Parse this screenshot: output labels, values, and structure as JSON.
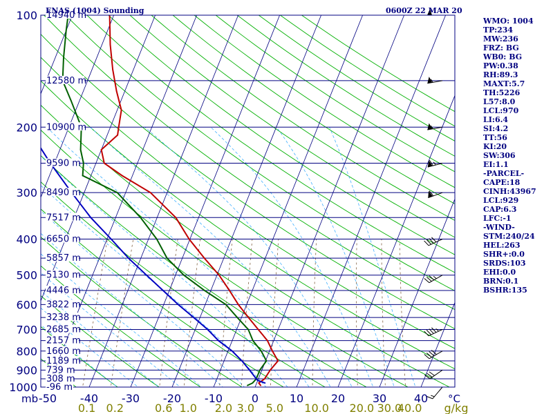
{
  "header": {
    "station": "ENAS (1004) Sounding",
    "time": "0600Z 22 MAR 20"
  },
  "indices": [
    "WMO: 1004",
    "TP:234",
    "MW:236",
    "FRZ: BG",
    "WB0: BG",
    "PW:0.38",
    "RH:89.3",
    "MAXT:5.7",
    "TH:5226",
    "L57:8.0",
    "LCL:970",
    "LI:6.4",
    "SI:4.2",
    "TT:56",
    "KI:20",
    "SW:306",
    "EI:1.1",
    "-PARCEL-",
    "CAPE:18",
    "CINH:43967",
    "LCL:929",
    "CAP:6.3",
    "LFC:-1",
    "-WIND-",
    "STM:240/24",
    "HEL:263",
    "SHR+:0.0",
    "SRDS:103",
    "EHI:0.0",
    "BRN:0.1",
    "BSHR:135"
  ],
  "colors": {
    "background": "#ffffff",
    "frame": "#000080",
    "isobar": "#000080",
    "isotherm": "#000080",
    "dry_adiabat": "#00b000",
    "moist_adiabat": "#40b0ff",
    "mixing_ratio": "#806040",
    "temperature": "#c00000",
    "dewpoint": "#006000",
    "parcel": "#0000c0",
    "mixing_label": "#808000"
  },
  "chart_data": {
    "type": "line",
    "title": "ENAS (1004) Sounding",
    "subtitle": "0600Z 22 MAR 20",
    "xlabel": "",
    "ylabel": "mb",
    "x_unit_label": "°C",
    "mixing_unit_label": "g/kg",
    "pressure_axis": {
      "scale": "log",
      "range": [
        1000,
        100
      ],
      "ticks": [
        "100",
        "200",
        "300",
        "400",
        "500",
        "600",
        "700",
        "800",
        "900",
        "1000"
      ]
    },
    "temperature_ticks": [
      "-50",
      "-40",
      "-30",
      "-20",
      "-10",
      "0",
      "10",
      "20",
      "30",
      "40"
    ],
    "mixing_ratio_ticks": [
      "0.1",
      "0.2",
      "0.6",
      "1.0",
      "2.0",
      "3.0",
      "5.0",
      "10.0",
      "20.0",
      "30.0",
      "40.0"
    ],
    "height_labels": [
      {
        "p": 100,
        "text": "14940 m"
      },
      {
        "p": 150,
        "text": "12580 m"
      },
      {
        "p": 200,
        "text": "10900 m"
      },
      {
        "p": 250,
        "text": "9590 m"
      },
      {
        "p": 300,
        "text": "8490 m"
      },
      {
        "p": 350,
        "text": "7517 m"
      },
      {
        "p": 400,
        "text": "6650 m"
      },
      {
        "p": 450,
        "text": "5857 m"
      },
      {
        "p": 500,
        "text": "5130 m"
      },
      {
        "p": 550,
        "text": "4446 m"
      },
      {
        "p": 600,
        "text": "3822 m"
      },
      {
        "p": 650,
        "text": "3238 m"
      },
      {
        "p": 700,
        "text": "2685 m"
      },
      {
        "p": 750,
        "text": "2157 m"
      },
      {
        "p": 800,
        "text": "1660 m"
      },
      {
        "p": 850,
        "text": "1189 m"
      },
      {
        "p": 900,
        "text": "739 m"
      },
      {
        "p": 950,
        "text": "308 m"
      },
      {
        "p": 1000,
        "text": "-96 m"
      }
    ],
    "series": [
      {
        "key": "temperature",
        "points": [
          [
            990,
            1.2
          ],
          [
            975,
            0.5
          ],
          [
            950,
            1.5
          ],
          [
            900,
            2.0
          ],
          [
            850,
            3.0
          ],
          [
            800,
            0.7
          ],
          [
            750,
            -1.5
          ],
          [
            700,
            -4.8
          ],
          [
            650,
            -8.3
          ],
          [
            600,
            -12.0
          ],
          [
            550,
            -15.5
          ],
          [
            500,
            -19.5
          ],
          [
            450,
            -24.7
          ],
          [
            400,
            -30.2
          ],
          [
            350,
            -35.5
          ],
          [
            300,
            -44.0
          ],
          [
            270,
            -52.5
          ],
          [
            250,
            -58.0
          ],
          [
            230,
            -60.0
          ],
          [
            210,
            -57.5
          ],
          [
            200,
            -58.0
          ],
          [
            180,
            -59.0
          ],
          [
            160,
            -62.0
          ],
          [
            140,
            -65.0
          ],
          [
            120,
            -68.0
          ],
          [
            100,
            -71.0
          ]
        ]
      },
      {
        "key": "dewpoint",
        "points": [
          [
            990,
            -2.0
          ],
          [
            975,
            -1.0
          ],
          [
            950,
            -0.5
          ],
          [
            900,
            -0.5
          ],
          [
            850,
            0.2
          ],
          [
            800,
            -2.0
          ],
          [
            750,
            -5.0
          ],
          [
            700,
            -7.2
          ],
          [
            650,
            -11.0
          ],
          [
            600,
            -15.0
          ],
          [
            550,
            -21.5
          ],
          [
            500,
            -28.0
          ],
          [
            450,
            -33.7
          ],
          [
            400,
            -38.0
          ],
          [
            350,
            -44.0
          ],
          [
            300,
            -52.0
          ],
          [
            270,
            -62.0
          ],
          [
            250,
            -63.0
          ],
          [
            230,
            -65.0
          ],
          [
            200,
            -67.0
          ],
          [
            170,
            -72.0
          ],
          [
            150,
            -76.0
          ],
          [
            130,
            -78.0
          ],
          [
            110,
            -80.0
          ],
          [
            100,
            -81.0
          ]
        ]
      },
      {
        "key": "parcel",
        "points": [
          [
            975,
            2.0
          ],
          [
            960,
            0.0
          ],
          [
            950,
            -0.5
          ],
          [
            900,
            -3.0
          ],
          [
            850,
            -5.7
          ],
          [
            800,
            -9.0
          ],
          [
            750,
            -13.3
          ],
          [
            700,
            -17.0
          ],
          [
            650,
            -21.5
          ],
          [
            600,
            -26.5
          ],
          [
            550,
            -31.5
          ],
          [
            500,
            -37.0
          ],
          [
            450,
            -43.0
          ],
          [
            400,
            -49.0
          ],
          [
            350,
            -56.0
          ],
          [
            300,
            -63.0
          ],
          [
            250,
            -71.0
          ],
          [
            200,
            -80.0
          ],
          [
            150,
            -91.0
          ],
          [
            120,
            -98.0
          ]
        ]
      }
    ],
    "wind_barbs": [
      {
        "p": 100,
        "dir": 270,
        "spd": 50
      },
      {
        "p": 150,
        "dir": 260,
        "spd": 55
      },
      {
        "p": 200,
        "dir": 260,
        "spd": 55
      },
      {
        "p": 250,
        "dir": 255,
        "spd": 65
      },
      {
        "p": 300,
        "dir": 250,
        "spd": 60
      },
      {
        "p": 400,
        "dir": 245,
        "spd": 40
      },
      {
        "p": 500,
        "dir": 240,
        "spd": 35
      },
      {
        "p": 700,
        "dir": 245,
        "spd": 45
      },
      {
        "p": 800,
        "dir": 240,
        "spd": 40
      },
      {
        "p": 900,
        "dir": 235,
        "spd": 30
      },
      {
        "p": 1000,
        "dir": 220,
        "spd": 15
      }
    ]
  }
}
